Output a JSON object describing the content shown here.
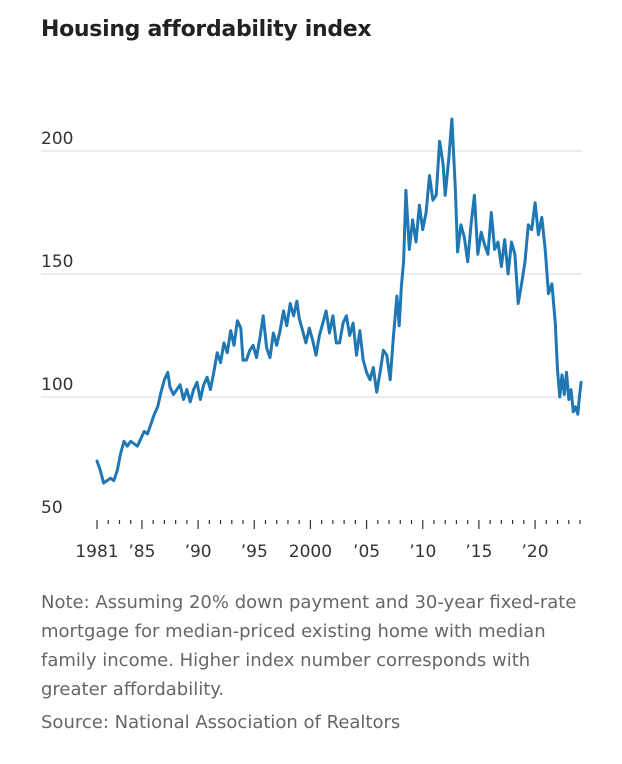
{
  "chart_data": {
    "type": "line",
    "title": "Housing affordability index",
    "note": "Note: Assuming 20% down payment and 30-year fixed-rate mortgage for median-priced existing home with median family income. Higher index number corresponds with greater affordability.",
    "source": "Source: National Association of Realtors",
    "xlabel": "",
    "ylabel": "",
    "xlim": [
      1981,
      2024
    ],
    "ylim": [
      50,
      215
    ],
    "grid": true,
    "color": "#1f77b4",
    "y_ticks": [
      {
        "value": 200,
        "label": "200"
      },
      {
        "value": 150,
        "label": "150"
      },
      {
        "value": 100,
        "label": "100"
      },
      {
        "value": 50,
        "label": "50"
      }
    ],
    "x_ticks": [
      {
        "value": 1981,
        "label": "1981"
      },
      {
        "value": 1985,
        "label": "’85"
      },
      {
        "value": 1990,
        "label": "’90"
      },
      {
        "value": 1995,
        "label": "’95"
      },
      {
        "value": 2000,
        "label": "2000"
      },
      {
        "value": 2005,
        "label": "’05"
      },
      {
        "value": 2010,
        "label": "’10"
      },
      {
        "value": 2015,
        "label": "’15"
      },
      {
        "value": 2020,
        "label": "’20"
      }
    ],
    "series": [
      {
        "values": [
          [
            1981.0,
            74
          ],
          [
            1981.3,
            70
          ],
          [
            1981.6,
            65
          ],
          [
            1981.9,
            66
          ],
          [
            1982.2,
            67
          ],
          [
            1982.5,
            66
          ],
          [
            1982.8,
            70
          ],
          [
            1983.1,
            77
          ],
          [
            1983.4,
            82
          ],
          [
            1983.7,
            80
          ],
          [
            1984.0,
            82
          ],
          [
            1984.3,
            81
          ],
          [
            1984.6,
            80
          ],
          [
            1984.9,
            83
          ],
          [
            1985.2,
            86
          ],
          [
            1985.5,
            85
          ],
          [
            1985.8,
            89
          ],
          [
            1986.1,
            93
          ],
          [
            1986.4,
            96
          ],
          [
            1986.7,
            102
          ],
          [
            1987.0,
            107
          ],
          [
            1987.3,
            110
          ],
          [
            1987.5,
            104
          ],
          [
            1987.8,
            101
          ],
          [
            1988.1,
            103
          ],
          [
            1988.4,
            105
          ],
          [
            1988.7,
            99
          ],
          [
            1989.0,
            103
          ],
          [
            1989.3,
            98
          ],
          [
            1989.6,
            103
          ],
          [
            1989.9,
            106
          ],
          [
            1990.2,
            99
          ],
          [
            1990.5,
            105
          ],
          [
            1990.8,
            108
          ],
          [
            1991.1,
            103
          ],
          [
            1991.4,
            110
          ],
          [
            1991.7,
            118
          ],
          [
            1992.0,
            114
          ],
          [
            1992.3,
            122
          ],
          [
            1992.6,
            118
          ],
          [
            1992.9,
            127
          ],
          [
            1993.2,
            121
          ],
          [
            1993.5,
            131
          ],
          [
            1993.8,
            128
          ],
          [
            1994.0,
            115
          ],
          [
            1994.3,
            115
          ],
          [
            1994.6,
            119
          ],
          [
            1994.9,
            121
          ],
          [
            1995.2,
            116
          ],
          [
            1995.5,
            124
          ],
          [
            1995.8,
            133
          ],
          [
            1996.1,
            120
          ],
          [
            1996.4,
            116
          ],
          [
            1996.7,
            126
          ],
          [
            1997.0,
            121
          ],
          [
            1997.3,
            127
          ],
          [
            1997.6,
            135
          ],
          [
            1997.9,
            129
          ],
          [
            1998.2,
            138
          ],
          [
            1998.5,
            133
          ],
          [
            1998.8,
            139
          ],
          [
            1999.0,
            132
          ],
          [
            1999.3,
            127
          ],
          [
            1999.6,
            122
          ],
          [
            1999.9,
            128
          ],
          [
            2000.2,
            123
          ],
          [
            2000.5,
            117
          ],
          [
            2000.8,
            125
          ],
          [
            2001.1,
            130
          ],
          [
            2001.4,
            135
          ],
          [
            2001.7,
            126
          ],
          [
            2002.0,
            133
          ],
          [
            2002.3,
            122
          ],
          [
            2002.6,
            122
          ],
          [
            2002.9,
            130
          ],
          [
            2003.2,
            133
          ],
          [
            2003.5,
            125
          ],
          [
            2003.8,
            130
          ],
          [
            2004.1,
            117
          ],
          [
            2004.4,
            127
          ],
          [
            2004.7,
            115
          ],
          [
            2005.0,
            110
          ],
          [
            2005.3,
            107
          ],
          [
            2005.6,
            112
          ],
          [
            2005.9,
            102
          ],
          [
            2006.2,
            110
          ],
          [
            2006.5,
            119
          ],
          [
            2006.8,
            117
          ],
          [
            2007.1,
            107
          ],
          [
            2007.4,
            125
          ],
          [
            2007.7,
            141
          ],
          [
            2007.9,
            129
          ],
          [
            2008.1,
            145
          ],
          [
            2008.3,
            155
          ],
          [
            2008.5,
            184
          ],
          [
            2008.8,
            160
          ],
          [
            2009.1,
            172
          ],
          [
            2009.4,
            163
          ],
          [
            2009.7,
            178
          ],
          [
            2010.0,
            168
          ],
          [
            2010.3,
            175
          ],
          [
            2010.6,
            190
          ],
          [
            2010.9,
            180
          ],
          [
            2011.2,
            182
          ],
          [
            2011.5,
            204
          ],
          [
            2011.8,
            195
          ],
          [
            2012.0,
            182
          ],
          [
            2012.3,
            196
          ],
          [
            2012.6,
            213
          ],
          [
            2012.9,
            185
          ],
          [
            2013.1,
            159
          ],
          [
            2013.4,
            170
          ],
          [
            2013.7,
            165
          ],
          [
            2014.0,
            155
          ],
          [
            2014.3,
            170
          ],
          [
            2014.6,
            182
          ],
          [
            2014.9,
            158
          ],
          [
            2015.2,
            167
          ],
          [
            2015.5,
            162
          ],
          [
            2015.8,
            158
          ],
          [
            2016.1,
            175
          ],
          [
            2016.4,
            160
          ],
          [
            2016.7,
            163
          ],
          [
            2017.0,
            153
          ],
          [
            2017.3,
            164
          ],
          [
            2017.6,
            150
          ],
          [
            2017.9,
            163
          ],
          [
            2018.2,
            158
          ],
          [
            2018.5,
            138
          ],
          [
            2018.8,
            146
          ],
          [
            2019.1,
            155
          ],
          [
            2019.4,
            170
          ],
          [
            2019.7,
            168
          ],
          [
            2020.0,
            179
          ],
          [
            2020.3,
            166
          ],
          [
            2020.6,
            173
          ],
          [
            2020.9,
            160
          ],
          [
            2021.2,
            142
          ],
          [
            2021.5,
            146
          ],
          [
            2021.8,
            130
          ],
          [
            2022.0,
            111
          ],
          [
            2022.2,
            100
          ],
          [
            2022.4,
            109
          ],
          [
            2022.6,
            101
          ],
          [
            2022.8,
            110
          ],
          [
            2023.0,
            99
          ],
          [
            2023.2,
            103
          ],
          [
            2023.4,
            94
          ],
          [
            2023.6,
            96
          ],
          [
            2023.8,
            93
          ],
          [
            2023.95,
            100
          ],
          [
            2024.1,
            106
          ]
        ]
      }
    ]
  }
}
